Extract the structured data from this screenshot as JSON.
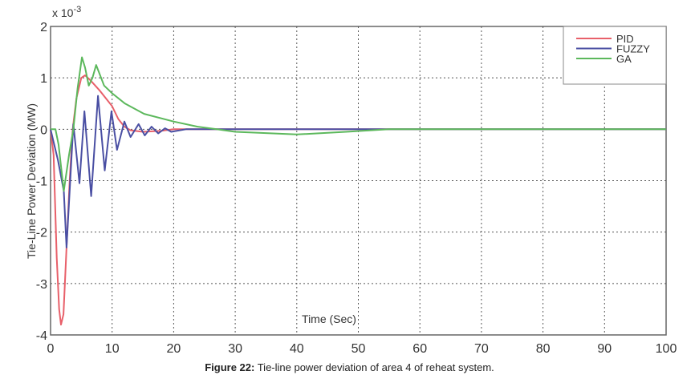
{
  "chart_data": {
    "type": "line",
    "title": "",
    "xlabel": "Time (Sec)",
    "ylabel": "Tie-Line Power Deviation (MW)",
    "y_multiplier": "x 10^-3",
    "xlim": [
      0,
      100
    ],
    "ylim": [
      -4,
      2
    ],
    "x_ticks": [
      "0",
      "10",
      "20",
      "30",
      "40",
      "50",
      "60",
      "70",
      "80",
      "90",
      "100"
    ],
    "y_ticks": [
      "-4",
      "-3",
      "-2",
      "-1",
      "0",
      "1",
      "2"
    ],
    "grid": true,
    "legend_position": "top-right",
    "series": [
      {
        "name": "PID",
        "color": "#e8606a",
        "x": [
          0,
          0.5,
          1,
          1.4,
          1.7,
          2.1,
          2.6,
          3.1,
          3.6,
          4.2,
          5,
          5.6,
          6.5,
          8,
          10,
          11,
          12,
          13,
          15,
          18,
          20,
          25,
          30,
          100
        ],
        "y": [
          0,
          -0.5,
          -2.5,
          -3.5,
          -3.8,
          -3.6,
          -2.3,
          -1,
          0,
          0.6,
          1.0,
          1.05,
          0.95,
          0.75,
          0.45,
          0.2,
          0.05,
          -0.02,
          -0.05,
          -0.03,
          0,
          0,
          0,
          0
        ]
      },
      {
        "name": "FUZZY",
        "color": "#4a4fa3",
        "x": [
          0,
          0.6,
          1.2,
          2.15,
          2.6,
          3.1,
          3.7,
          4.7,
          5.5,
          6.6,
          7.7,
          8.8,
          9.9,
          10.8,
          12,
          13,
          14.3,
          15.3,
          16.4,
          17.5,
          18.6,
          19.6,
          22,
          30,
          100
        ],
        "y": [
          0,
          -0.3,
          -0.6,
          -1.2,
          -2.3,
          -1.2,
          0.1,
          -1.05,
          0.35,
          -1.3,
          0.65,
          -0.8,
          0.35,
          -0.4,
          0.15,
          -0.15,
          0.1,
          -0.12,
          0.05,
          -0.08,
          0.02,
          -0.05,
          0,
          0,
          0
        ]
      },
      {
        "name": "GA",
        "color": "#5cb85c",
        "x": [
          0,
          0.8,
          1.3,
          2.15,
          3,
          3.7,
          4.4,
          5.1,
          5.6,
          6.2,
          6.8,
          7.4,
          8.7,
          10,
          12.1,
          15.2,
          20,
          23.9,
          27,
          30,
          40,
          48,
          55,
          100
        ],
        "y": [
          0,
          0,
          -0.3,
          -1.2,
          -0.5,
          0,
          0.8,
          1.4,
          1.2,
          0.85,
          1.0,
          1.25,
          0.85,
          0.7,
          0.5,
          0.3,
          0.15,
          0.05,
          0,
          -0.05,
          -0.1,
          -0.05,
          0,
          0
        ]
      }
    ]
  },
  "caption": {
    "label": "Figure 22:",
    "text": " Tie-line power deviation of area 4 of reheat system."
  }
}
